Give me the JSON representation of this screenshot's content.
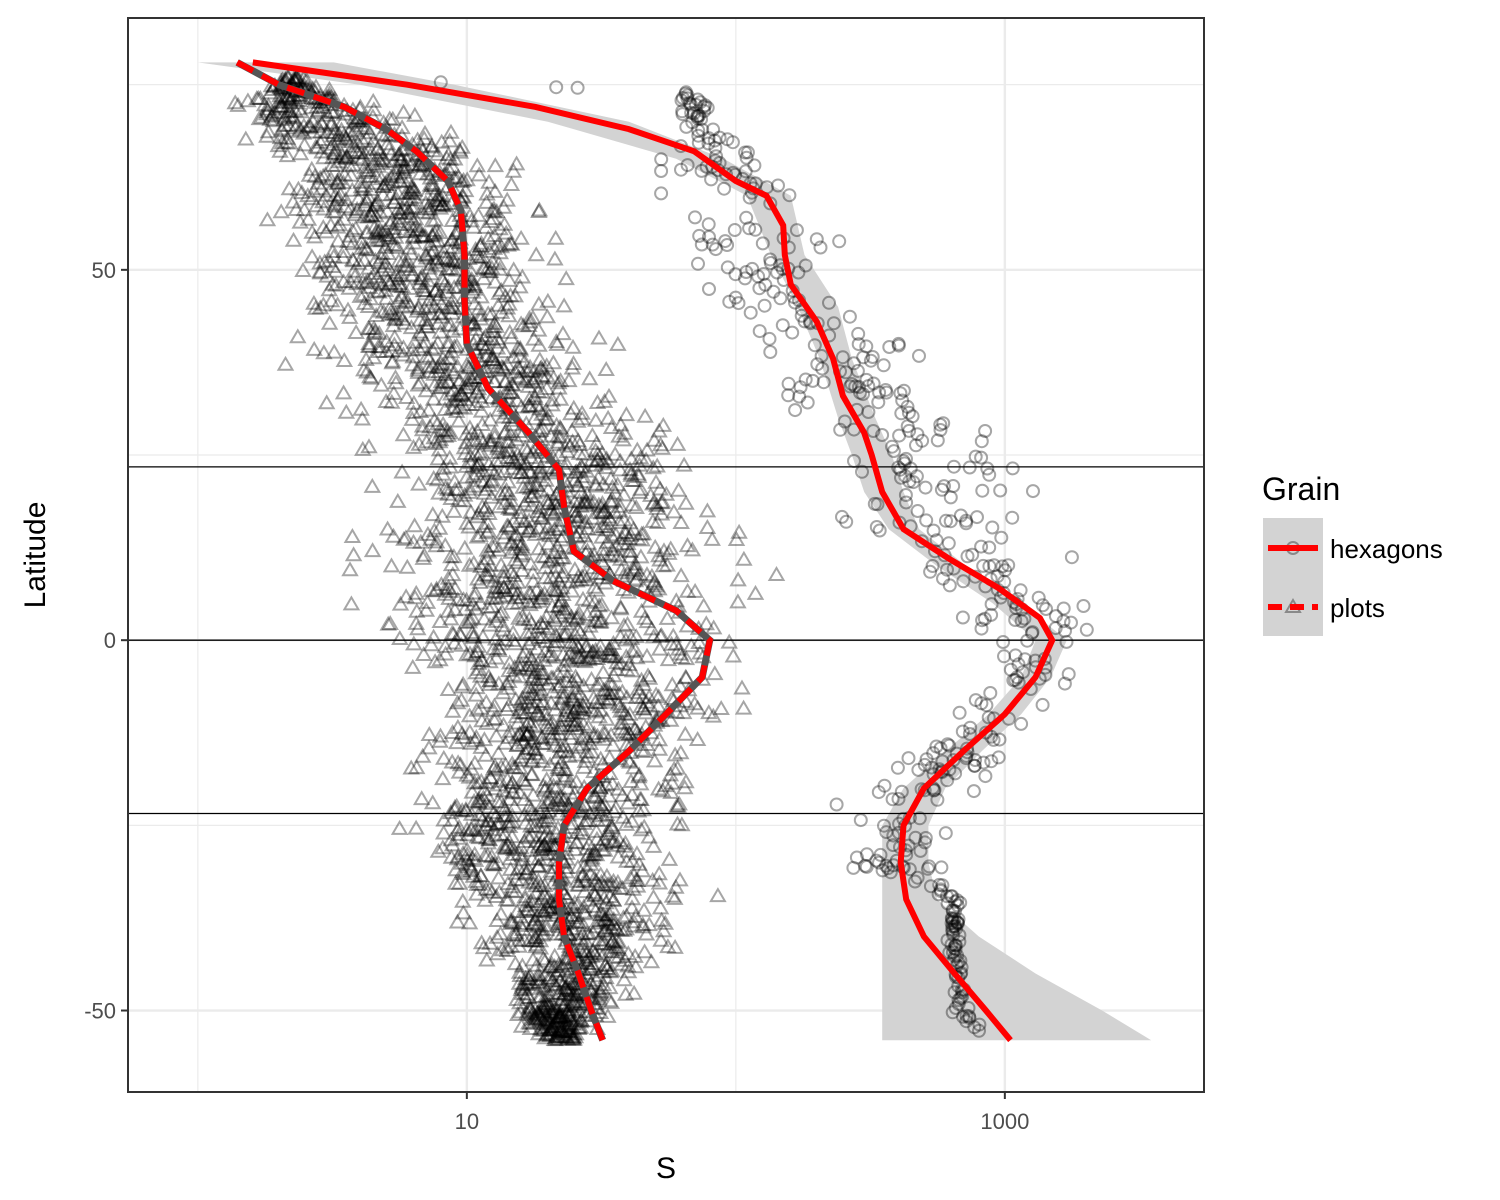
{
  "chart_data": {
    "type": "scatter",
    "x_scale": "log10",
    "xlabel": "S",
    "ylabel": "Latitude",
    "xlim": [
      0.55,
      5500
    ],
    "ylim": [
      -61,
      84
    ],
    "x_ticks": [
      {
        "value": 10,
        "label": "10"
      },
      {
        "value": 1000,
        "label": "1000"
      }
    ],
    "y_ticks": [
      {
        "value": 50,
        "label": "50"
      },
      {
        "value": 0,
        "label": "0"
      },
      {
        "value": -50,
        "label": "-50"
      }
    ],
    "reference_lines": [
      23.4,
      0,
      -23.4
    ],
    "grid": true,
    "legend": {
      "title": "Grain",
      "position": "right",
      "entries": [
        {
          "label": "hexagons",
          "line": "solid",
          "marker": "circle"
        },
        {
          "label": "plots",
          "line": "dashed",
          "marker": "triangle"
        }
      ]
    },
    "colors": {
      "smooth_line": "#ff0000",
      "confidence_band": "#d3d3d3",
      "points": "#000000"
    },
    "series": [
      {
        "name": "hexagons",
        "marker": "circle",
        "line_style": "solid",
        "smooth": [
          {
            "lat": 78,
            "S": 1.6
          },
          {
            "lat": 75,
            "S": 6
          },
          {
            "lat": 72,
            "S": 18
          },
          {
            "lat": 69,
            "S": 40
          },
          {
            "lat": 66,
            "S": 70
          },
          {
            "lat": 62,
            "S": 100
          },
          {
            "lat": 60,
            "S": 130
          },
          {
            "lat": 56,
            "S": 150
          },
          {
            "lat": 52,
            "S": 152
          },
          {
            "lat": 48,
            "S": 160
          },
          {
            "lat": 43,
            "S": 200
          },
          {
            "lat": 38,
            "S": 230
          },
          {
            "lat": 33,
            "S": 250
          },
          {
            "lat": 28,
            "S": 300
          },
          {
            "lat": 25,
            "S": 320
          },
          {
            "lat": 20,
            "S": 350
          },
          {
            "lat": 15,
            "S": 420
          },
          {
            "lat": 11,
            "S": 620
          },
          {
            "lat": 7,
            "S": 950
          },
          {
            "lat": 3,
            "S": 1350
          },
          {
            "lat": 0,
            "S": 1500
          },
          {
            "lat": -5,
            "S": 1300
          },
          {
            "lat": -10,
            "S": 1000
          },
          {
            "lat": -15,
            "S": 700
          },
          {
            "lat": -20,
            "S": 500
          },
          {
            "lat": -25,
            "S": 420
          },
          {
            "lat": -30,
            "S": 410
          },
          {
            "lat": -35,
            "S": 430
          },
          {
            "lat": -40,
            "S": 500
          },
          {
            "lat": -45,
            "S": 650
          },
          {
            "lat": -50,
            "S": 850
          },
          {
            "lat": -54,
            "S": 1050
          }
        ],
        "band": [
          {
            "lat": 78,
            "lo": 1.0,
            "hi": 3.2
          },
          {
            "lat": 75,
            "lo": 4,
            "hi": 9
          },
          {
            "lat": 70,
            "lo": 20,
            "hi": 40
          },
          {
            "lat": 65,
            "lo": 60,
            "hi": 90
          },
          {
            "lat": 60,
            "lo": 110,
            "hi": 160
          },
          {
            "lat": 52,
            "lo": 135,
            "hi": 180
          },
          {
            "lat": 45,
            "lo": 170,
            "hi": 240
          },
          {
            "lat": 38,
            "lo": 205,
            "hi": 270
          },
          {
            "lat": 30,
            "lo": 240,
            "hi": 330
          },
          {
            "lat": 25,
            "lo": 270,
            "hi": 380
          },
          {
            "lat": 20,
            "lo": 300,
            "hi": 420
          },
          {
            "lat": 15,
            "lo": 370,
            "hi": 480
          },
          {
            "lat": 10,
            "lo": 560,
            "hi": 720
          },
          {
            "lat": 5,
            "lo": 900,
            "hi": 1150
          },
          {
            "lat": 0,
            "lo": 1300,
            "hi": 1700
          },
          {
            "lat": -5,
            "lo": 1150,
            "hi": 1480
          },
          {
            "lat": -10,
            "lo": 870,
            "hi": 1150
          },
          {
            "lat": -15,
            "lo": 600,
            "hi": 820
          },
          {
            "lat": -20,
            "lo": 420,
            "hi": 600
          },
          {
            "lat": -25,
            "lo": 350,
            "hi": 520
          },
          {
            "lat": -30,
            "lo": 350,
            "hi": 520
          },
          {
            "lat": -35,
            "lo": 350,
            "hi": 560
          },
          {
            "lat": -40,
            "lo": 350,
            "hi": 800
          },
          {
            "lat": -45,
            "lo": 350,
            "hi": 1300
          },
          {
            "lat": -50,
            "lo": 350,
            "hi": 2300
          },
          {
            "lat": -54,
            "lo": 350,
            "hi": 3500
          }
        ],
        "points_envelope": [
          {
            "lat": 76,
            "lo": 2,
            "hi": 3
          },
          {
            "lat": 74,
            "lo": 60,
            "hi": 70
          },
          {
            "lat": 68,
            "lo": 50,
            "hi": 120
          },
          {
            "lat": 62,
            "lo": 40,
            "hi": 250
          },
          {
            "lat": 56,
            "lo": 40,
            "hi": 330
          },
          {
            "lat": 50,
            "lo": 60,
            "hi": 250
          },
          {
            "lat": 45,
            "lo": 80,
            "hi": 300
          },
          {
            "lat": 40,
            "lo": 110,
            "hi": 550
          },
          {
            "lat": 35,
            "lo": 110,
            "hi": 700
          },
          {
            "lat": 30,
            "lo": 120,
            "hi": 1000
          },
          {
            "lat": 25,
            "lo": 150,
            "hi": 1600
          },
          {
            "lat": 20,
            "lo": 200,
            "hi": 1600
          },
          {
            "lat": 15,
            "lo": 220,
            "hi": 2000
          },
          {
            "lat": 10,
            "lo": 350,
            "hi": 2200
          },
          {
            "lat": 5,
            "lo": 500,
            "hi": 2500
          },
          {
            "lat": 0,
            "lo": 700,
            "hi": 2700
          },
          {
            "lat": -5,
            "lo": 750,
            "hi": 2000
          },
          {
            "lat": -10,
            "lo": 500,
            "hi": 1600
          },
          {
            "lat": -15,
            "lo": 400,
            "hi": 1200
          },
          {
            "lat": -20,
            "lo": 250,
            "hi": 900
          },
          {
            "lat": -25,
            "lo": 160,
            "hi": 800
          },
          {
            "lat": -30,
            "lo": 200,
            "hi": 700
          },
          {
            "lat": -35,
            "lo": 600,
            "hi": 700
          },
          {
            "lat": -40,
            "lo": 600,
            "hi": 700
          },
          {
            "lat": -45,
            "lo": 600,
            "hi": 750
          },
          {
            "lat": -50,
            "lo": 600,
            "hi": 800
          },
          {
            "lat": -53,
            "lo": 800,
            "hi": 850
          }
        ]
      },
      {
        "name": "plots",
        "marker": "triangle",
        "line_style": "dashed",
        "smooth": [
          {
            "lat": 78,
            "S": 1.4
          },
          {
            "lat": 75,
            "S": 2
          },
          {
            "lat": 72,
            "S": 3.5
          },
          {
            "lat": 69,
            "S": 5
          },
          {
            "lat": 66,
            "S": 6.5
          },
          {
            "lat": 62,
            "S": 8.5
          },
          {
            "lat": 58,
            "S": 9.5
          },
          {
            "lat": 52,
            "S": 9.8
          },
          {
            "lat": 46,
            "S": 9.8
          },
          {
            "lat": 40,
            "S": 10
          },
          {
            "lat": 34,
            "S": 12
          },
          {
            "lat": 28,
            "S": 17
          },
          {
            "lat": 23,
            "S": 22
          },
          {
            "lat": 18,
            "S": 23
          },
          {
            "lat": 12,
            "S": 25
          },
          {
            "lat": 8,
            "S": 35
          },
          {
            "lat": 4,
            "S": 60
          },
          {
            "lat": 0,
            "S": 80
          },
          {
            "lat": -5,
            "S": 75
          },
          {
            "lat": -10,
            "S": 55
          },
          {
            "lat": -15,
            "S": 40
          },
          {
            "lat": -20,
            "S": 28
          },
          {
            "lat": -25,
            "S": 23
          },
          {
            "lat": -30,
            "S": 22
          },
          {
            "lat": -35,
            "S": 22
          },
          {
            "lat": -40,
            "S": 23
          },
          {
            "lat": -45,
            "S": 26
          },
          {
            "lat": -50,
            "S": 29
          },
          {
            "lat": -54,
            "S": 32
          }
        ],
        "points_envelope": [
          {
            "lat": 76,
            "lo": 2,
            "hi": 2.5
          },
          {
            "lat": 72,
            "lo": 1,
            "hi": 6
          },
          {
            "lat": 68,
            "lo": 1,
            "hi": 15
          },
          {
            "lat": 64,
            "lo": 1.5,
            "hi": 18
          },
          {
            "lat": 60,
            "lo": 1.5,
            "hi": 22
          },
          {
            "lat": 55,
            "lo": 1.5,
            "hi": 28
          },
          {
            "lat": 50,
            "lo": 1.6,
            "hi": 32
          },
          {
            "lat": 45,
            "lo": 1.6,
            "hi": 40
          },
          {
            "lat": 40,
            "lo": 1.6,
            "hi": 45
          },
          {
            "lat": 35,
            "lo": 2.2,
            "hi": 60
          },
          {
            "lat": 30,
            "lo": 2.5,
            "hi": 75
          },
          {
            "lat": 25,
            "lo": 3.5,
            "hi": 90
          },
          {
            "lat": 20,
            "lo": 4,
            "hi": 110
          },
          {
            "lat": 15,
            "lo": 3,
            "hi": 130
          },
          {
            "lat": 10,
            "lo": 2.5,
            "hi": 150
          },
          {
            "lat": 5,
            "lo": 2.5,
            "hi": 160
          },
          {
            "lat": 0,
            "lo": 3,
            "hi": 170
          },
          {
            "lat": -5,
            "lo": 4,
            "hi": 160
          },
          {
            "lat": -10,
            "lo": 4.5,
            "hi": 130
          },
          {
            "lat": -15,
            "lo": 4.5,
            "hi": 110
          },
          {
            "lat": -20,
            "lo": 3.5,
            "hi": 100
          },
          {
            "lat": -25,
            "lo": 4,
            "hi": 95
          },
          {
            "lat": -30,
            "lo": 4,
            "hi": 90
          },
          {
            "lat": -35,
            "lo": 6,
            "hi": 90
          },
          {
            "lat": -40,
            "lo": 8,
            "hi": 80
          },
          {
            "lat": -45,
            "lo": 10,
            "hi": 55
          },
          {
            "lat": -50,
            "lo": 12,
            "hi": 40
          },
          {
            "lat": -54,
            "lo": 18,
            "hi": 28
          }
        ]
      }
    ]
  }
}
